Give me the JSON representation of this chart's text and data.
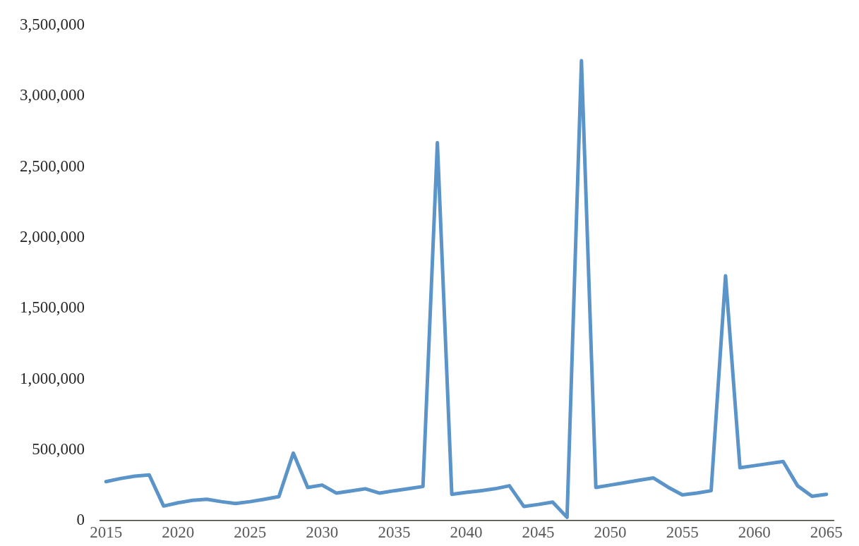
{
  "chart_data": {
    "type": "line",
    "x": [
      2015,
      2016,
      2017,
      2018,
      2019,
      2020,
      2021,
      2022,
      2023,
      2024,
      2025,
      2026,
      2027,
      2028,
      2029,
      2030,
      2031,
      2032,
      2033,
      2034,
      2035,
      2036,
      2037,
      2038,
      2039,
      2040,
      2041,
      2042,
      2043,
      2044,
      2045,
      2046,
      2047,
      2048,
      2049,
      2050,
      2051,
      2052,
      2053,
      2054,
      2055,
      2056,
      2057,
      2058,
      2059,
      2060,
      2061,
      2062,
      2063,
      2064,
      2065
    ],
    "series": [
      {
        "color": "#5b94c9",
        "values": [
          276000,
          298000,
          315000,
          324000,
          104000,
          127000,
          144000,
          152000,
          135000,
          122000,
          135000,
          152000,
          170000,
          478000,
          235000,
          252000,
          195000,
          210000,
          226000,
          195000,
          212000,
          226000,
          242000,
          2670000,
          187000,
          200000,
          212000,
          226000,
          247000,
          101000,
          115000,
          132000,
          24000,
          3250000,
          235000,
          252000,
          269000,
          286000,
          302000,
          238000,
          183000,
          195000,
          212000,
          1730000,
          375000,
          389000,
          404000,
          418000,
          247000,
          173000,
          187000
        ]
      }
    ],
    "xlim": [
      2014.6,
      2065.5
    ],
    "xticks": [
      2015,
      2020,
      2025,
      2030,
      2035,
      2040,
      2045,
      2050,
      2055,
      2060,
      2065
    ],
    "ylim": [
      0,
      3500000
    ],
    "yticks": [
      0,
      {
        "value": 500000,
        "label": "500,000"
      },
      {
        "value": 1000000,
        "label": "1,000,000"
      },
      {
        "value": 1500000,
        "label": "1,500,000"
      },
      {
        "value": 2000000,
        "label": "2,000,000"
      },
      {
        "value": 2500000,
        "label": "2,500,000"
      },
      {
        "value": 3000000,
        "label": "3,000,000"
      },
      {
        "value": 3500000,
        "label": "3,500,000"
      }
    ],
    "grid": false,
    "legend": false,
    "marker": "none",
    "line_style": "solid"
  }
}
